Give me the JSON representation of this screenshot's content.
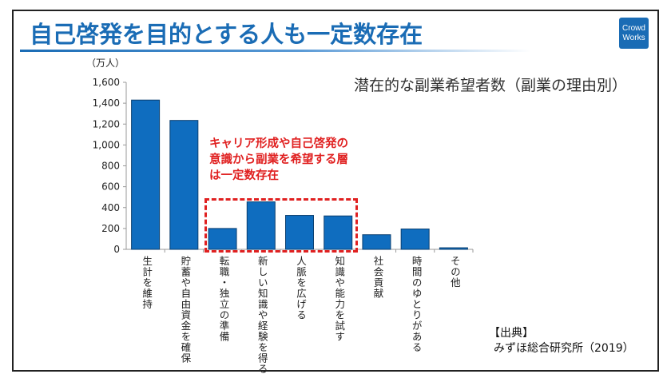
{
  "slide": {
    "title": "自己啓発を目的とする人も一定数存在",
    "logo_lines": [
      "Crowd",
      "Works"
    ],
    "brand_color": "#1a6cb5",
    "source_label": "【出典】",
    "source_text": "みずほ総合研究所（2019）"
  },
  "chart_data": {
    "type": "bar",
    "title": "潜在的な副業希望者数（副業の理由別）",
    "ylabel": "（万人）",
    "xlabel": "",
    "ylim": [
      0,
      1600
    ],
    "yticks": [
      0,
      200,
      400,
      600,
      800,
      1000,
      1200,
      1400,
      1600
    ],
    "ytick_labels": [
      "0",
      "200",
      "400",
      "600",
      "800",
      "1,000",
      "1,200",
      "1,400",
      "1,600"
    ],
    "grid": false,
    "bar_color": "#0f6dbf",
    "categories": [
      "生計を維持",
      "貯蓄や自由資金を確保",
      "転職・独立の準備",
      "新しい知識や経験を得る",
      "人脈を広げる",
      "知識や能力を試す",
      "社会貢献",
      "時間のゆとりがある",
      "その他"
    ],
    "values": [
      1430,
      1235,
      200,
      455,
      325,
      320,
      140,
      195,
      15
    ],
    "annotation": {
      "text": "キャリア形成や自己啓発の\n意識から副業を希望する層\nは一定数存在",
      "color": "#e02020",
      "highlighted_categories": [
        "転職・独立の準備",
        "新しい知識や経験を得る",
        "人脈を広げる",
        "知識や能力を試す"
      ]
    }
  }
}
